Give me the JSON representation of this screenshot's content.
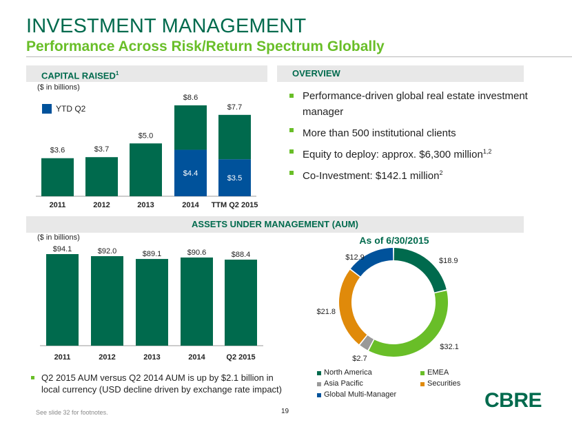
{
  "header": {
    "title": "INVESTMENT MANAGEMENT",
    "subtitle": "Performance Across Risk/Return Spectrum Globally"
  },
  "capital_raised": {
    "label": "CAPITAL RAISED",
    "label_sup": "1",
    "units": "($ in billions)"
  },
  "overview": {
    "label": "OVERVIEW",
    "items": [
      {
        "text": "Performance-driven global real estate investment manager",
        "sup": ""
      },
      {
        "text": "More than 500 institutional clients",
        "sup": ""
      },
      {
        "text": "Equity to deploy: approx. $6,300 million",
        "sup": "1,2"
      },
      {
        "text": "Co-Investment: $142.1 million",
        "sup": "2"
      }
    ]
  },
  "aum": {
    "label": "ASSETS UNDER MANAGEMENT (AUM)",
    "units": "($ in billions)",
    "donut_title": "As of 6/30/2015",
    "note": "Q2 2015 AUM versus Q2 2014 AUM is up by $2.1 billion in local currency (USD decline driven by exchange rate impact)"
  },
  "chart_data": [
    {
      "type": "bar",
      "categories": [
        "2011",
        "2012",
        "2013",
        "2014",
        "TTM Q2 2015"
      ],
      "series": [
        {
          "name": "",
          "values": [
            3.6,
            3.7,
            5.0,
            4.2,
            4.2
          ],
          "color": "#006a4d"
        },
        {
          "name": "YTD Q2",
          "values": [
            0,
            0,
            0,
            4.4,
            3.5
          ],
          "color": "#00529b"
        }
      ],
      "total_labels": [
        "$3.6",
        "$3.7",
        "$5.0",
        "$8.6",
        "$7.7"
      ],
      "segment_labels": [
        "",
        "",
        "",
        "$4.4",
        "$3.5"
      ],
      "ylim": [
        0,
        10
      ],
      "legend_position": "top-left"
    },
    {
      "type": "bar",
      "categories": [
        "2011",
        "2012",
        "2013",
        "2014",
        "Q2 2015"
      ],
      "values": [
        94.1,
        92.0,
        89.1,
        90.6,
        88.4
      ],
      "value_labels": [
        "$94.1",
        "$92.0",
        "$89.1",
        "$90.6",
        "$88.4"
      ],
      "color": "#006a4d",
      "ylim": [
        0,
        100
      ]
    },
    {
      "type": "pie",
      "donut": true,
      "slices": [
        {
          "name": "North America",
          "value": 18.9,
          "label": "$18.9",
          "color": "#006a4d"
        },
        {
          "name": "EMEA",
          "value": 32.1,
          "label": "$32.1",
          "color": "#69be28"
        },
        {
          "name": "Asia Pacific",
          "value": 2.7,
          "label": "$2.7",
          "color": "#999999"
        },
        {
          "name": "Securities",
          "value": 21.8,
          "label": "$21.8",
          "color": "#e08a0a"
        },
        {
          "name": "Global Multi-Manager",
          "value": 12.9,
          "label": "$12.9",
          "color": "#00529b"
        }
      ]
    }
  ],
  "footer": {
    "footnote": "See slide 32 for footnotes.",
    "page_number": "19",
    "logo": "CBRE"
  }
}
